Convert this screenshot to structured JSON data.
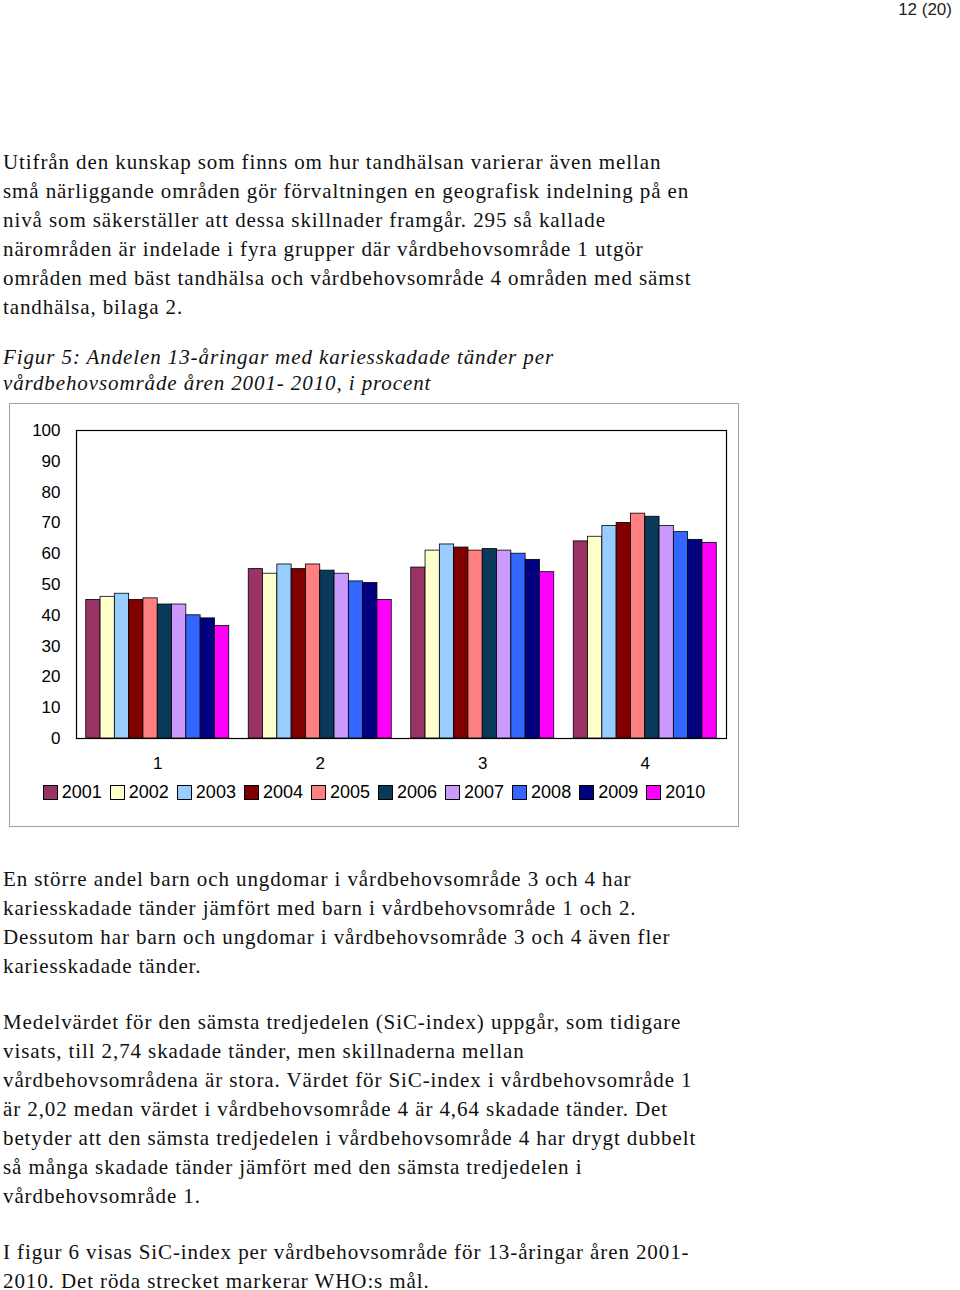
{
  "header": "12 (20)",
  "paragraphs_before": [
    [
      "Utifrån den kunskap som finns om hur tandhälsan varierar även mellan",
      "små närliggande områden gör förvaltningen en geografisk indelning på en",
      "nivå som säkerställer att dessa skillnader framgår. 295 så kallade",
      "närområden är indelade i fyra grupper där vårdbehovsområde 1 utgör",
      "områden med bäst tandhälsa och vårdbehovsområde 4 områden med sämst",
      "tandhälsa, bilaga 2."
    ]
  ],
  "figure_caption": [
    "Figur 5: Andelen 13-åringar med kariesskadade tänder per",
    "vårdbehovsområde åren 2001- 2010, i procent"
  ],
  "chart_data": {
    "type": "bar",
    "categories": [
      "1",
      "2",
      "3",
      "4"
    ],
    "series": [
      {
        "name": "2001",
        "color": "#993366",
        "values": [
          45,
          55,
          55.5,
          64
        ]
      },
      {
        "name": "2002",
        "color": "#ffffcc",
        "values": [
          46,
          53.5,
          61,
          65.5
        ]
      },
      {
        "name": "2003",
        "color": "#99ccff",
        "values": [
          47,
          56.5,
          63,
          69
        ]
      },
      {
        "name": "2004",
        "color": "#800000",
        "values": [
          45,
          55,
          62,
          70
        ]
      },
      {
        "name": "2005",
        "color": "#ff8080",
        "values": [
          45.5,
          56.5,
          61,
          73
        ]
      },
      {
        "name": "2006",
        "color": "#0a3a5a",
        "values": [
          43.5,
          54.5,
          61.5,
          72
        ]
      },
      {
        "name": "2007",
        "color": "#cc99ff",
        "values": [
          43.5,
          53.5,
          61,
          69
        ]
      },
      {
        "name": "2008",
        "color": "#3366ff",
        "values": [
          40,
          51,
          60,
          67
        ]
      },
      {
        "name": "2009",
        "color": "#000080",
        "values": [
          39,
          50.5,
          58,
          64.5
        ]
      },
      {
        "name": "2010",
        "color": "#ff00ff",
        "values": [
          36.5,
          45,
          54,
          63.5
        ]
      }
    ],
    "ylim": [
      0,
      100
    ],
    "yticks": [
      0,
      10,
      20,
      30,
      40,
      50,
      60,
      70,
      80,
      90,
      100
    ],
    "grid": false,
    "legend": "bottom"
  },
  "paragraphs_after": [
    [
      "En större andel barn och ungdomar i vårdbehovsområde 3 och 4 har",
      "kariesskadade tänder jämfört med barn i vårdbehovsområde 1 och 2.",
      "Dessutom har barn och ungdomar i vårdbehovsområde 3 och 4 även fler",
      "kariesskadade tänder."
    ],
    [
      "Medelvärdet för den sämsta tredjedelen (SiC-index) uppgår, som tidigare",
      "visats, till 2,74 skadade tänder, men skillnaderna mellan",
      "vårdbehovsområdena är stora. Värdet för SiC-index i vårdbehovsområde 1",
      "är 2,02 medan värdet i vårdbehovsområde 4 är 4,64 skadade tänder. Det",
      "betyder att den sämsta tredjedelen i vårdbehovsområde 4 har drygt dubbelt",
      "så många skadade tänder jämfört med den sämsta tredjedelen i",
      "vårdbehovsområde 1."
    ],
    [
      "I figur 6 visas SiC-index per vårdbehovsområde för 13-åringar åren 2001-",
      "2010. Det röda strecket markerar WHO:s mål."
    ]
  ]
}
